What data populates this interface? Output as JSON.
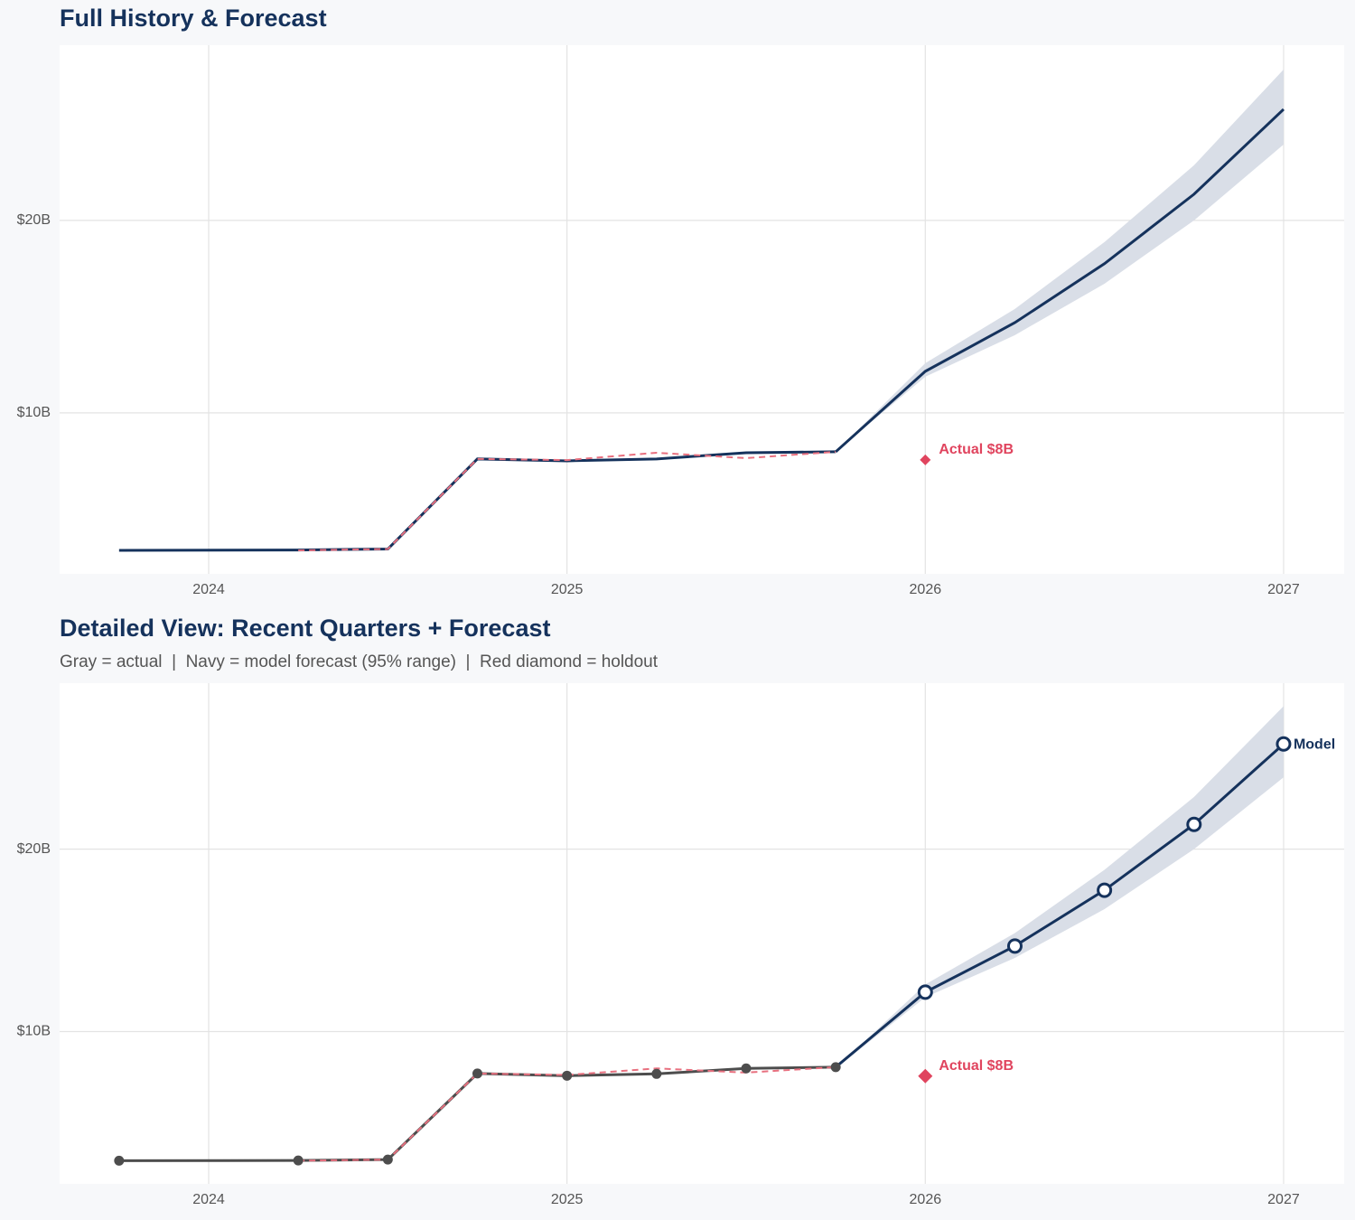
{
  "chart_data": [
    {
      "type": "line",
      "title": "Full History & Forecast",
      "xlim": [
        2023.584,
        2027.169
      ],
      "xticks": [
        2024,
        2025,
        2026,
        2027
      ],
      "ylim": [
        1.64,
        29.1
      ],
      "yticks": [
        {
          "value": 10,
          "label": "$10B"
        },
        {
          "value": 20,
          "label": "$20B"
        }
      ],
      "grid": true,
      "band": {
        "x": [
          2025.75,
          2026,
          2026.25,
          2026.5,
          2026.75,
          2027
        ],
        "lower": [
          7.98,
          11.88,
          14.04,
          16.71,
          20.0,
          23.94
        ],
        "upper": [
          7.98,
          12.58,
          15.4,
          18.87,
          22.86,
          27.84
        ],
        "color": "#d9dee7"
      },
      "series": [
        {
          "x": [
            2023.75,
            2024.25,
            2024.5,
            2024.75,
            2025,
            2025.25,
            2025.5,
            2025.75
          ],
          "values": [
            2.86,
            2.88,
            2.93,
            7.61,
            7.51,
            7.61,
            7.93,
            7.98
          ],
          "color": "#15325c"
        },
        {
          "x": [
            2024.25,
            2024.5,
            2024.75,
            2025,
            2025.25,
            2025.5,
            2025.75
          ],
          "values": [
            2.86,
            2.93,
            7.61,
            7.55,
            7.93,
            7.65,
            7.98
          ],
          "color": "#e8707f",
          "dashed": true
        },
        {
          "x": [
            2025.75,
            2026,
            2026.25,
            2026.5,
            2026.75,
            2027
          ],
          "values": [
            7.98,
            12.16,
            14.69,
            17.75,
            21.36,
            25.77
          ],
          "color": "#15325c"
        }
      ],
      "holdout": {
        "x": 2026,
        "value": 7.56,
        "label": "Actual $8B",
        "color": "#e0445e"
      }
    },
    {
      "type": "line",
      "title": "Detailed View: Recent Quarters + Forecast",
      "subtitle": "Gray = actual  |  Navy = model forecast (95% range)  |  Red diamond = holdout",
      "xlim": [
        2023.584,
        2027.169
      ],
      "xticks": [
        2024,
        2025,
        2026,
        2027
      ],
      "ylim": [
        1.65,
        29.1
      ],
      "yticks": [
        {
          "value": 10,
          "label": "$10B"
        },
        {
          "value": 20,
          "label": "$20B"
        }
      ],
      "grid": true,
      "band": {
        "x": [
          2025.75,
          2026,
          2026.25,
          2026.5,
          2026.75,
          2027
        ],
        "lower": [
          7.98,
          11.88,
          14.04,
          16.71,
          20.0,
          23.94
        ],
        "upper": [
          7.98,
          12.58,
          15.4,
          18.87,
          22.86,
          27.84
        ],
        "color": "#d9dee7"
      },
      "series": [
        {
          "x": [
            2023.75,
            2024.25,
            2024.5,
            2024.75,
            2025,
            2025.25,
            2025.5,
            2025.75
          ],
          "values": [
            2.92,
            2.93,
            2.98,
            7.7,
            7.58,
            7.68,
            7.98,
            8.05
          ],
          "color": "#4d4d4d",
          "markers": "filled"
        },
        {
          "x": [
            2024.25,
            2024.5,
            2024.75,
            2025,
            2025.25,
            2025.5,
            2025.75
          ],
          "values": [
            2.92,
            2.98,
            7.7,
            7.62,
            7.98,
            7.75,
            8.05
          ],
          "color": "#e8707f",
          "dashed": true
        },
        {
          "x": [
            2025.75,
            2026,
            2026.25,
            2026.5,
            2026.75,
            2027
          ],
          "values": [
            8.05,
            12.16,
            14.69,
            17.75,
            21.36,
            25.77
          ],
          "color": "#15325c",
          "markers": "open"
        }
      ],
      "end_label": "Model",
      "holdout": {
        "x": 2026,
        "value": 7.56,
        "label": "Actual $8B",
        "color": "#e0445e"
      }
    }
  ]
}
